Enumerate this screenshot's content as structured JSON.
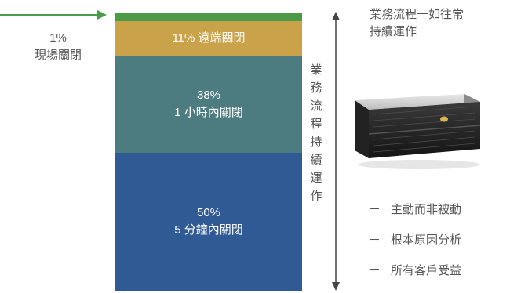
{
  "left_annotation": {
    "line1": "1%",
    "line2": "現場關閉"
  },
  "bar_segments": {
    "remote": {
      "text": "11% 遠端關閉"
    },
    "hour": {
      "pct": "38%",
      "text": "1 小時內關閉"
    },
    "five_min": {
      "pct": "50%",
      "text": "5 分鐘內關閉"
    }
  },
  "vertical_label": [
    "業",
    "務",
    "流",
    "程",
    "持",
    "續",
    "運",
    "作"
  ],
  "right_top": {
    "line1": "業務流程一如往常",
    "line2": "持續運作"
  },
  "bullets": [
    {
      "dash": "－",
      "text": "主動而非被動"
    },
    {
      "dash": "－",
      "text": "根本原因分析"
    },
    {
      "dash": "－",
      "text": "所有客戶受益"
    }
  ],
  "colors": {
    "green": "#4a9a48",
    "gold": "#c9a24a",
    "teal": "#4d7c80",
    "blue": "#2f5a93"
  }
}
